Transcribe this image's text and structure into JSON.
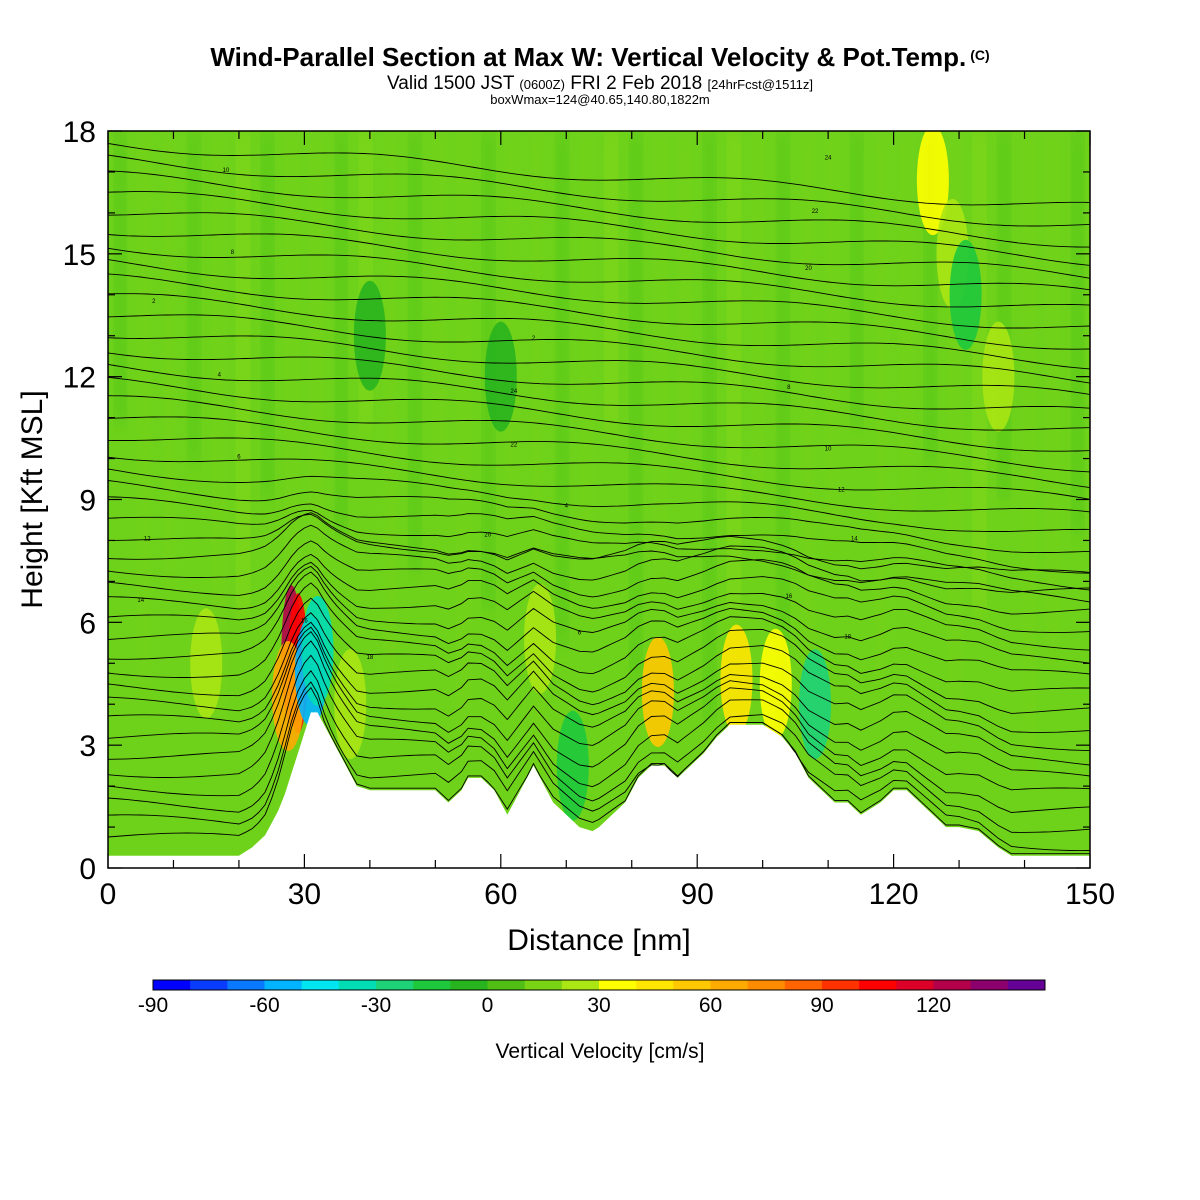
{
  "title": {
    "main": "Wind-Parallel Section at Max W: Vertical Velocity & Pot.Temp.",
    "copyright": "(C)",
    "valid_prefix": "Valid 1500 JST",
    "valid_utc": "(0600Z)",
    "valid_date": "FRI 2 Feb 2018",
    "forecast": "[24hrFcst@1511z]",
    "box_wmax": "boxWmax=124@40.65,140.80,1822m"
  },
  "colors": {
    "background_field": "#6fd21a",
    "terrain": "#ffffff",
    "contour": "#000000"
  },
  "chart_data": {
    "type": "contour",
    "xlabel": "Distance [nm]",
    "ylabel": "Height [Kft MSL]",
    "xlim": [
      0,
      150
    ],
    "ylim": [
      0,
      18
    ],
    "x_ticks": [
      "0",
      "30",
      "60",
      "90",
      "120",
      "150"
    ],
    "y_ticks": [
      "0",
      "3",
      "6",
      "9",
      "12",
      "15",
      "18"
    ],
    "colorbar": {
      "title": "Vertical Velocity [cm/s]",
      "levels": [
        -90,
        -80,
        -70,
        -60,
        -50,
        -40,
        -30,
        -20,
        -10,
        0,
        10,
        20,
        30,
        40,
        50,
        60,
        70,
        80,
        90,
        100,
        110,
        120,
        130,
        140
      ],
      "tick_labels": [
        "-90",
        "-60",
        "-30",
        "0",
        "30",
        "60",
        "90",
        "120"
      ],
      "colors": [
        "#0000ff",
        "#0a3cff",
        "#0a78ff",
        "#00b4ff",
        "#00e6f0",
        "#00dcb4",
        "#1ed278",
        "#1ec83c",
        "#28b41e",
        "#50be14",
        "#7ad214",
        "#aae614",
        "#ffff00",
        "#ffe600",
        "#ffc800",
        "#ffaa00",
        "#ff8c00",
        "#ff6400",
        "#ff3200",
        "#ff0000",
        "#dc0028",
        "#b4004b",
        "#8c006e",
        "#640096"
      ]
    },
    "terrain_profile": {
      "x": [
        0,
        20,
        22,
        24,
        25,
        26,
        27,
        28,
        29,
        30,
        31,
        32,
        33,
        34,
        35,
        36,
        37,
        38,
        40,
        45,
        50,
        52,
        54,
        55,
        57,
        59,
        60,
        61,
        62,
        64,
        65,
        66,
        68,
        70,
        72,
        74,
        75,
        77,
        79,
        81,
        83,
        85,
        87,
        89,
        91,
        93,
        95,
        97,
        100,
        103,
        105,
        107,
        109,
        111,
        113,
        115,
        118,
        120,
        122,
        124,
        126,
        128,
        130,
        133,
        136,
        138,
        139,
        150
      ],
      "height_kft": [
        0.3,
        0.3,
        0.5,
        0.8,
        1.1,
        1.4,
        1.8,
        2.3,
        2.8,
        3.3,
        3.8,
        3.8,
        3.5,
        3.2,
        2.9,
        2.6,
        2.3,
        2.0,
        1.9,
        1.9,
        1.9,
        1.6,
        1.9,
        2.2,
        2.2,
        1.9,
        1.6,
        1.3,
        1.6,
        2.2,
        2.5,
        2.2,
        1.6,
        1.3,
        1.0,
        0.9,
        1.0,
        1.3,
        1.6,
        2.2,
        2.5,
        2.5,
        2.2,
        2.5,
        2.8,
        3.2,
        3.5,
        3.5,
        3.5,
        3.2,
        2.8,
        2.2,
        1.9,
        1.6,
        1.6,
        1.3,
        1.6,
        1.9,
        1.9,
        1.6,
        1.3,
        1.0,
        1.0,
        0.9,
        0.5,
        0.3,
        0.3,
        0.3
      ]
    },
    "velocity_cells": [
      {
        "x": 28,
        "y": 5.2,
        "value": 120
      },
      {
        "x": 29,
        "y": 5.0,
        "value": 100
      },
      {
        "x": 27.5,
        "y": 4.2,
        "value": 60
      },
      {
        "x": 31,
        "y": 4.8,
        "value": -60
      },
      {
        "x": 32,
        "y": 5.3,
        "value": -40
      },
      {
        "x": 84,
        "y": 4.3,
        "value": 50
      },
      {
        "x": 96,
        "y": 4.6,
        "value": 40
      },
      {
        "x": 102,
        "y": 4.5,
        "value": 30
      },
      {
        "x": 108,
        "y": 4.0,
        "value": -30
      },
      {
        "x": 71,
        "y": 2.5,
        "value": -20
      },
      {
        "x": 126,
        "y": 16.8,
        "value": 30
      },
      {
        "x": 129,
        "y": 15.0,
        "value": 20
      },
      {
        "x": 131,
        "y": 14.0,
        "value": -20
      },
      {
        "x": 136,
        "y": 12.0,
        "value": 20
      },
      {
        "x": 37,
        "y": 4.0,
        "value": 20
      },
      {
        "x": 66,
        "y": 5.6,
        "value": 20
      },
      {
        "x": 15,
        "y": 5.0,
        "value": 20
      },
      {
        "x": 40,
        "y": 13.0,
        "value": -10
      },
      {
        "x": 60,
        "y": 12.0,
        "value": -10
      }
    ],
    "theta_labels": [
      "2",
      "4",
      "6",
      "8",
      "10",
      "12",
      "14",
      "16",
      "18",
      "20",
      "22",
      "24"
    ]
  }
}
